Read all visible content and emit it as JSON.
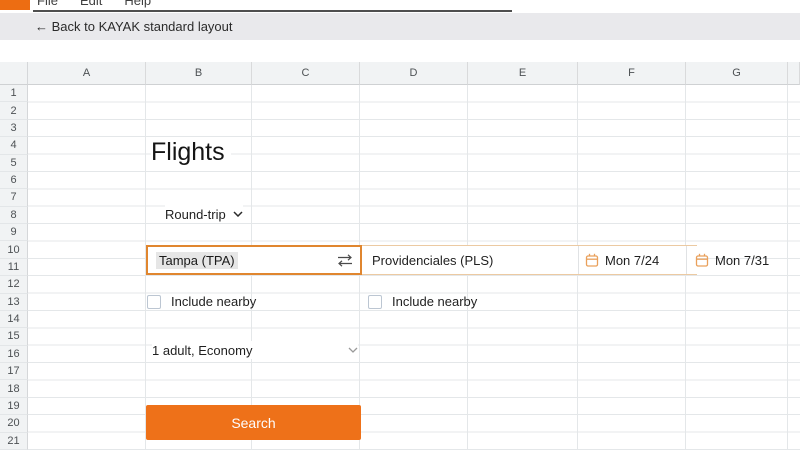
{
  "window": {
    "menu_items": [
      "File",
      "Edit",
      "Help"
    ]
  },
  "back_bar": {
    "label": "← Back to KAYAK standard layout"
  },
  "sheet": {
    "col_labels": [
      "A",
      "B",
      "C",
      "D",
      "E",
      "F",
      "G"
    ],
    "row_labels": [
      "1",
      "2",
      "3",
      "4",
      "5",
      "6",
      "7",
      "8",
      "9",
      "10",
      "11",
      "12",
      "13",
      "14",
      "15",
      "16",
      "17",
      "18",
      "19",
      "20",
      "21"
    ]
  },
  "form": {
    "title": "Flights",
    "trip_type": "Round-trip",
    "origin": "Tampa (TPA)",
    "destination": "Providenciales (PLS)",
    "depart_date": "Mon 7/24",
    "return_date": "Mon 7/31",
    "origin_nearby_label": "Include nearby",
    "destination_nearby_label": "Include nearby",
    "travelers": "1 adult, Economy",
    "search_label": "Search"
  },
  "colors": {
    "brand_orange": "#ed6d12",
    "button_orange": "#ee7119",
    "focus_border": "#e0862f",
    "calendar_icon": "#e9a05b"
  }
}
